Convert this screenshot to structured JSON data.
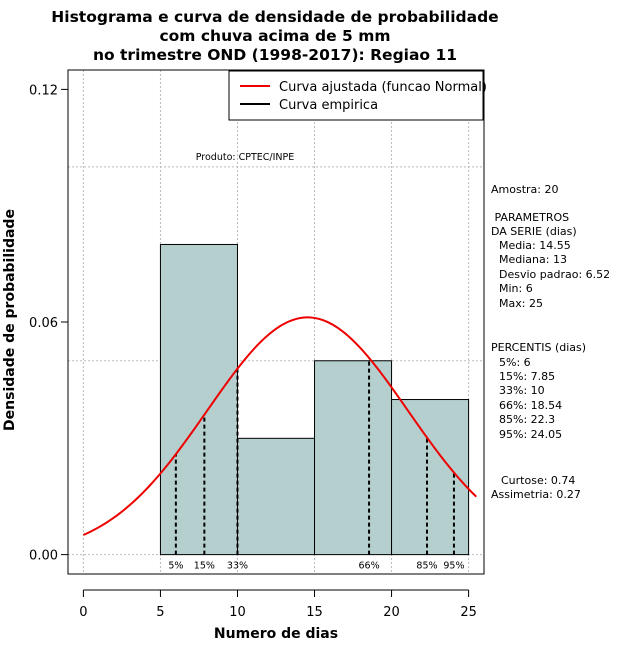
{
  "chart_data": {
    "type": "bar",
    "title": [
      "Histograma e curva de densidade de probabilidade",
      "com chuva acima de 5 mm",
      "no trimestre OND (1998-2017): Regiao 11"
    ],
    "xlabel": "Numero de dias",
    "ylabel": "Densidade de probabilidade",
    "xlim": [
      -1,
      26
    ],
    "ylim": [
      -0.005,
      0.125
    ],
    "x_ticks": [
      0,
      5,
      10,
      15,
      20,
      25
    ],
    "y_ticks": [
      {
        "value": 0.0,
        "label": "0.00"
      },
      {
        "value": 0.06,
        "label": "0.06"
      },
      {
        "value": 0.12,
        "label": "0.12"
      }
    ],
    "grid": true,
    "grid_x": [
      0,
      5,
      10,
      15,
      20,
      25
    ],
    "grid_y": [
      0.0,
      0.05,
      0.1
    ],
    "bins": [
      {
        "from": 5,
        "to": 10,
        "density": 0.08
      },
      {
        "from": 10,
        "to": 15,
        "density": 0.03
      },
      {
        "from": 15,
        "to": 20,
        "density": 0.05
      },
      {
        "from": 20,
        "to": 25,
        "density": 0.04
      }
    ],
    "bar_color": "#b5cfcf",
    "normal_curve": {
      "mean": 14.55,
      "sd": 6.52,
      "x_range": [
        0,
        25.5
      ],
      "color": "#ee0000"
    },
    "legend": {
      "position": "top-right",
      "entries": [
        {
          "label": "Curva ajustada (funcao Normal)",
          "color": "#ee0000"
        },
        {
          "label": "Curva empirica",
          "color": "#000000"
        }
      ]
    },
    "percentile_markers": [
      {
        "label": "5%",
        "x": 6
      },
      {
        "label": "15%",
        "x": 7.85
      },
      {
        "label": "33%",
        "x": 10
      },
      {
        "label": "66%",
        "x": 18.54
      },
      {
        "label": "85%",
        "x": 22.3
      },
      {
        "label": "95%",
        "x": 24.05
      }
    ],
    "credit": "Produto: CPTEC/INPE"
  },
  "side_panel": {
    "sample": "Amostra: 20",
    "params_header": [
      " PARAMETROS",
      "DA SERIE (dias)"
    ],
    "params": [
      "Media: 14.55",
      "Mediana: 13",
      "Desvio padrao: 6.52",
      "Min: 6",
      "Max: 25"
    ],
    "percentis_header": "PERCENTIS (dias)",
    "percentis": [
      "5%: 6",
      "15%: 7.85",
      "33%: 10",
      "66%: 18.54",
      "85%: 22.3",
      "95%: 24.05"
    ],
    "curtose": "Curtose: 0.74",
    "assimetria": "Assimetria: 0.27"
  }
}
